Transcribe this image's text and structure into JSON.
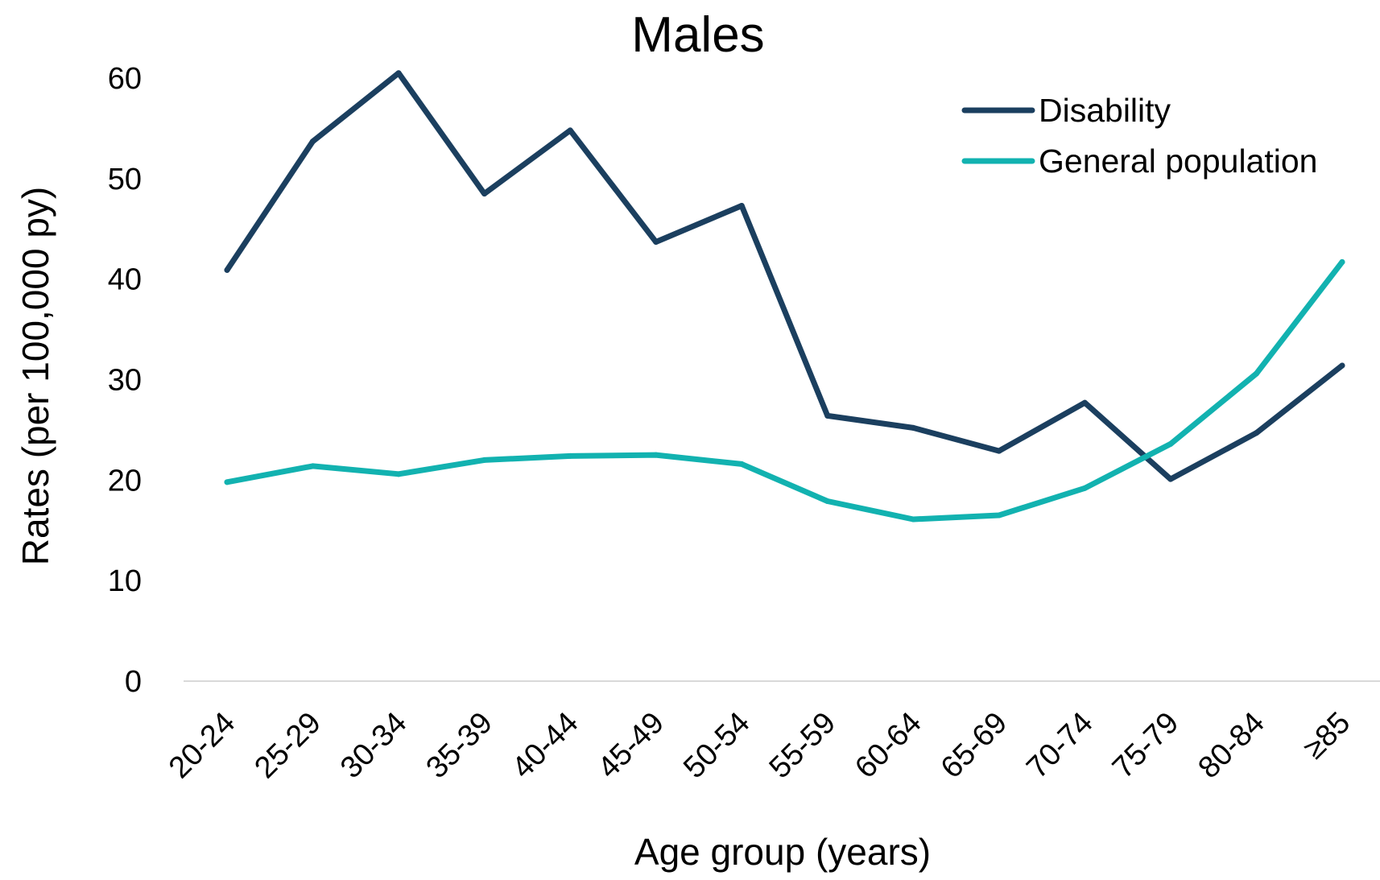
{
  "chart_data": {
    "type": "line",
    "title": "Males",
    "xlabel": "Age group (years)",
    "ylabel": "Rates (per 100,000 py)",
    "categories": [
      "20-24",
      "25-29",
      "30-34",
      "35-39",
      "40-44",
      "45-49",
      "50-54",
      "55-59",
      "60-64",
      "65-69",
      "70-74",
      "75-79",
      "80-84",
      "≥85"
    ],
    "ylim": [
      0,
      60
    ],
    "yticks": [
      0,
      10,
      20,
      30,
      40,
      50,
      60
    ],
    "grid": false,
    "legend_position": "top-right",
    "series": [
      {
        "name": "Disability",
        "color": "#1b3f5f",
        "values": [
          40.9,
          53.7,
          60.5,
          48.5,
          54.8,
          43.7,
          47.3,
          26.4,
          25.2,
          22.9,
          27.7,
          20.1,
          24.7,
          31.4
        ]
      },
      {
        "name": "General population",
        "color": "#12b2b0",
        "values": [
          19.8,
          21.4,
          20.6,
          22.0,
          22.4,
          22.5,
          21.6,
          17.9,
          16.1,
          16.5,
          19.2,
          23.6,
          30.6,
          41.7
        ]
      }
    ]
  }
}
